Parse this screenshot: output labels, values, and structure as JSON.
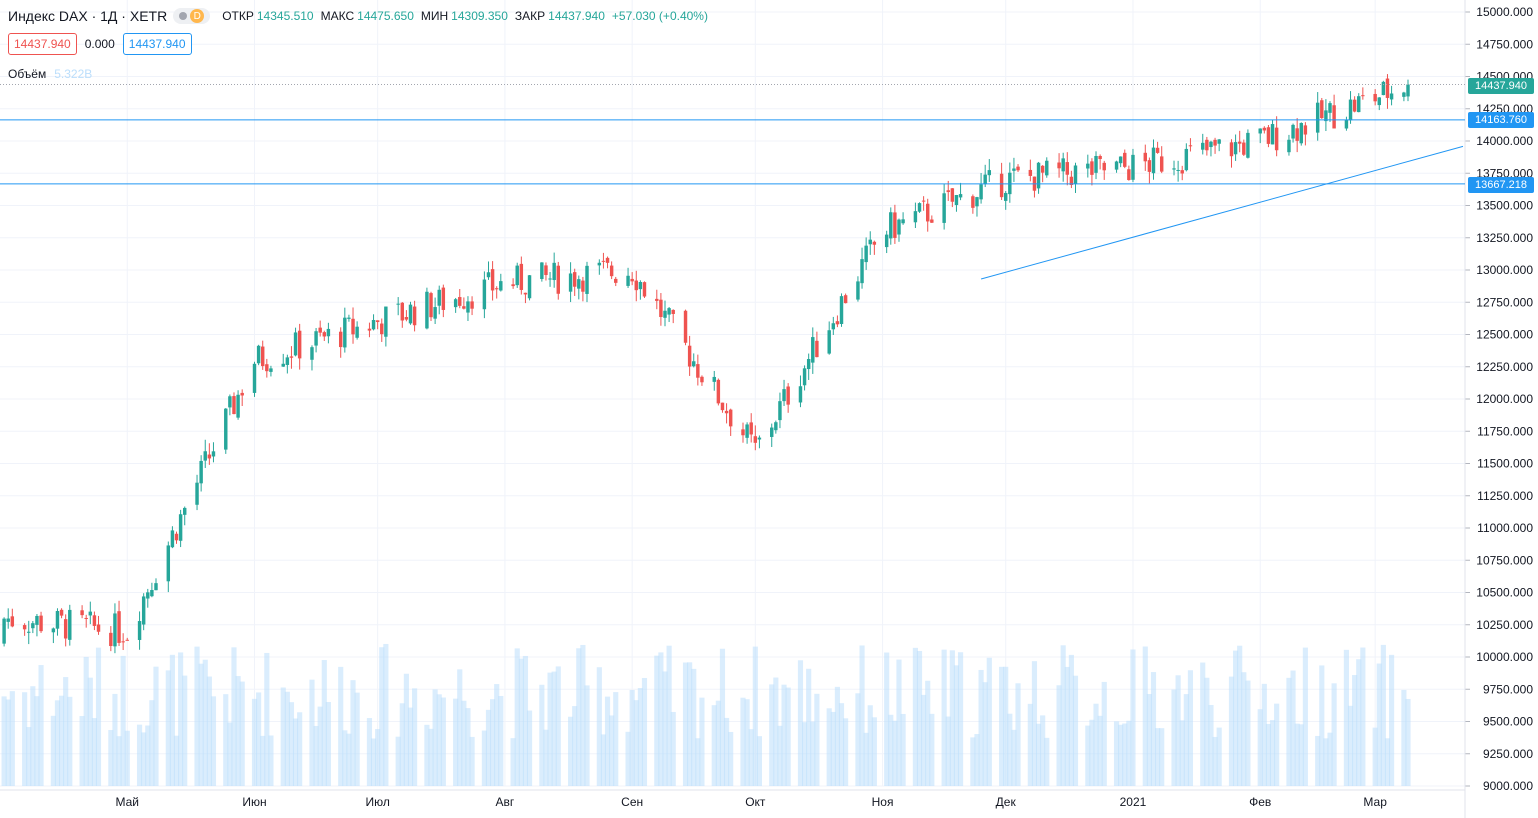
{
  "header": {
    "title": "Индекс DAX · 1Д · XETR",
    "badge_letter": "D",
    "ohlc": [
      {
        "k": "ОТКР",
        "v": "14345.510"
      },
      {
        "k": "МАКС",
        "v": "14475.650"
      },
      {
        "k": "МИН",
        "v": "14309.350"
      },
      {
        "k": "ЗАКР",
        "v": "14437.940"
      },
      {
        "k": "",
        "v": "+57.030 (+0.40%)"
      }
    ]
  },
  "inputs": {
    "left": "14437.940",
    "middle": "0.000",
    "right": "14437.940"
  },
  "volume": {
    "label": "Объём",
    "value": "5.322B"
  },
  "tags": {
    "last": "14437.940",
    "level1": "14163.760",
    "level2": "13667.218"
  },
  "colors": {
    "up": "#26a69a",
    "down": "#ef5350",
    "volume": "#bbdefb",
    "line": "#2196f3",
    "grid": "#f0f3fa"
  },
  "chart_data": {
    "type": "candlestick",
    "price_axis": {
      "ticks": [
        "15000.000",
        "14750.000",
        "14500.000",
        "14250.000",
        "14000.000",
        "13750.000",
        "13500.000",
        "13250.000",
        "13000.000",
        "12750.000",
        "12500.000",
        "12250.000",
        "12000.000",
        "11750.000",
        "11500.000",
        "11250.000",
        "11000.000",
        "10750.000",
        "10500.000",
        "10250.000",
        "10000.000",
        "9750.000",
        "9500.000",
        "9250.000",
        "9000.000"
      ],
      "ylim": [
        9000,
        15000
      ]
    },
    "time_axis": {
      "labels": [
        "Май",
        "Июн",
        "Июл",
        "Авг",
        "Сен",
        "Окт",
        "Ноя",
        "Дек",
        "2021",
        "Фев",
        "Мар"
      ],
      "label_dates": [
        "2020-05-01",
        "2020-06-01",
        "2020-07-01",
        "2020-08-01",
        "2020-09-01",
        "2020-10-01",
        "2020-11-01",
        "2020-12-01",
        "2021-01-01",
        "2021-02-01",
        "2021-03-01"
      ],
      "xlim": [
        "2020-03-31",
        "2021-03-09"
      ]
    },
    "horizontal_lines": [
      14437.94,
      14163.76,
      13667.218
    ],
    "trendline": {
      "start": [
        "2020-11-25",
        12930
      ],
      "end": [
        "2021-03-09",
        13850
      ]
    },
    "monthly_closes": [
      {
        "date": "2020-04-01",
        "close": 10300
      },
      {
        "date": "2020-05-01",
        "close": 10200
      },
      {
        "date": "2020-06-01",
        "close": 12300
      },
      {
        "date": "2020-07-01",
        "close": 12600
      },
      {
        "date": "2020-08-01",
        "close": 12900
      },
      {
        "date": "2020-09-01",
        "close": 13000
      },
      {
        "date": "2020-10-01",
        "close": 11600
      },
      {
        "date": "2020-11-01",
        "close": 13300
      },
      {
        "date": "2020-12-01",
        "close": 13700
      },
      {
        "date": "2021-01-01",
        "close": 13800
      },
      {
        "date": "2021-02-01",
        "close": 14000
      },
      {
        "date": "2021-03-09",
        "close": 14437.94
      }
    ]
  }
}
